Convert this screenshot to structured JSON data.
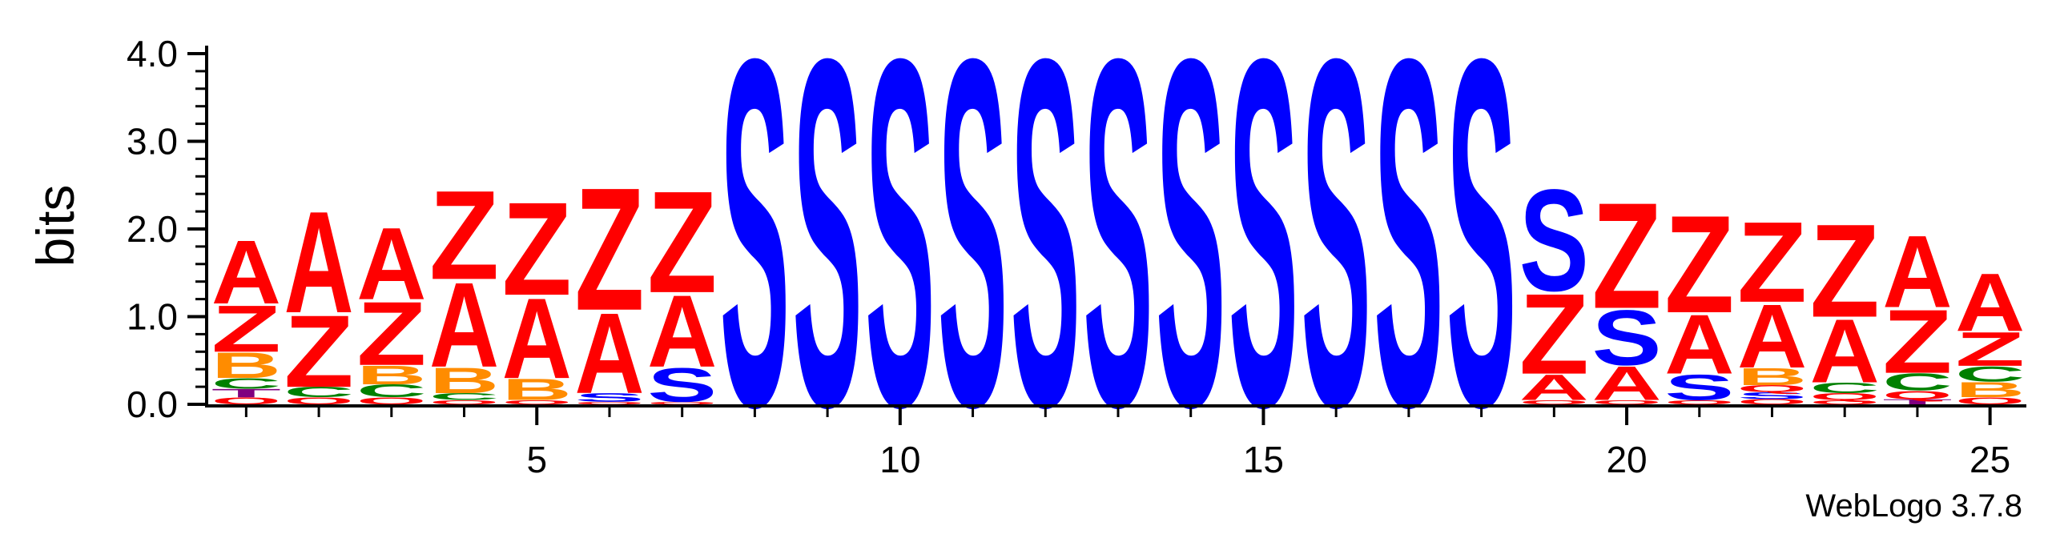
{
  "chart_data": {
    "type": "sequence-logo",
    "ylabel": "bits",
    "ylim": [
      0,
      4.0
    ],
    "y_ticks": [
      0.0,
      1.0,
      2.0,
      3.0,
      4.0
    ],
    "y_tick_labels": [
      "0.0",
      "1.0",
      "2.0",
      "3.0",
      "4.0"
    ],
    "x_ticks": [
      5,
      10,
      15,
      20,
      25
    ],
    "x_tick_labels": [
      "5",
      "10",
      "15",
      "20",
      "25"
    ],
    "x_range": [
      0.5,
      25.5
    ],
    "credit": "WebLogo 3.7.8",
    "colors": {
      "A": "#ff0000",
      "Z": "#ff0000",
      "S": "#0000ff",
      "B": "#ff8c00",
      "C": "#008000",
      "T": "#800080",
      "Q": "#ff0000"
    },
    "positions": [
      {
        "pos": 1,
        "stack": [
          {
            "letter": "Q",
            "bits": 0.08
          },
          {
            "letter": "T",
            "bits": 0.1
          },
          {
            "letter": "C",
            "bits": 0.12
          },
          {
            "letter": "B",
            "bits": 0.3
          },
          {
            "letter": "Z",
            "bits": 0.55
          },
          {
            "letter": "A",
            "bits": 0.75
          }
        ]
      },
      {
        "pos": 2,
        "stack": [
          {
            "letter": "Q",
            "bits": 0.08
          },
          {
            "letter": "C",
            "bits": 0.12
          },
          {
            "letter": "Z",
            "bits": 0.85
          },
          {
            "letter": "A",
            "bits": 1.2
          }
        ]
      },
      {
        "pos": 3,
        "stack": [
          {
            "letter": "Q",
            "bits": 0.08
          },
          {
            "letter": "C",
            "bits": 0.15
          },
          {
            "letter": "B",
            "bits": 0.22
          },
          {
            "letter": "Z",
            "bits": 0.75
          },
          {
            "letter": "A",
            "bits": 0.85
          }
        ]
      },
      {
        "pos": 4,
        "stack": [
          {
            "letter": "Q",
            "bits": 0.05
          },
          {
            "letter": "C",
            "bits": 0.08
          },
          {
            "letter": "B",
            "bits": 0.3
          },
          {
            "letter": "A",
            "bits": 1.0
          },
          {
            "letter": "Z",
            "bits": 1.05
          }
        ]
      },
      {
        "pos": 5,
        "stack": [
          {
            "letter": "Q",
            "bits": 0.05
          },
          {
            "letter": "B",
            "bits": 0.25
          },
          {
            "letter": "A",
            "bits": 0.95
          },
          {
            "letter": "Z",
            "bits": 1.1
          }
        ]
      },
      {
        "pos": 6,
        "stack": [
          {
            "letter": "Q",
            "bits": 0.03
          },
          {
            "letter": "S",
            "bits": 0.1
          },
          {
            "letter": "A",
            "bits": 0.95
          },
          {
            "letter": "Z",
            "bits": 1.45
          }
        ]
      },
      {
        "pos": 7,
        "stack": [
          {
            "letter": "Q",
            "bits": 0.03
          },
          {
            "letter": "S",
            "bits": 0.4
          },
          {
            "letter": "A",
            "bits": 0.85
          },
          {
            "letter": "Z",
            "bits": 1.2
          }
        ]
      },
      {
        "pos": 8,
        "stack": [
          {
            "letter": "S",
            "bits": 4.1
          }
        ]
      },
      {
        "pos": 9,
        "stack": [
          {
            "letter": "S",
            "bits": 4.1
          }
        ]
      },
      {
        "pos": 10,
        "stack": [
          {
            "letter": "S",
            "bits": 4.1
          }
        ]
      },
      {
        "pos": 11,
        "stack": [
          {
            "letter": "S",
            "bits": 4.1
          }
        ]
      },
      {
        "pos": 12,
        "stack": [
          {
            "letter": "S",
            "bits": 4.1
          }
        ]
      },
      {
        "pos": 13,
        "stack": [
          {
            "letter": "S",
            "bits": 4.1
          }
        ]
      },
      {
        "pos": 14,
        "stack": [
          {
            "letter": "S",
            "bits": 4.1
          }
        ]
      },
      {
        "pos": 15,
        "stack": [
          {
            "letter": "S",
            "bits": 4.1
          }
        ]
      },
      {
        "pos": 16,
        "stack": [
          {
            "letter": "S",
            "bits": 4.1
          }
        ]
      },
      {
        "pos": 17,
        "stack": [
          {
            "letter": "S",
            "bits": 4.1
          }
        ]
      },
      {
        "pos": 18,
        "stack": [
          {
            "letter": "S",
            "bits": 4.1
          }
        ]
      },
      {
        "pos": 19,
        "stack": [
          {
            "letter": "Q",
            "bits": 0.05
          },
          {
            "letter": "A",
            "bits": 0.3
          },
          {
            "letter": "Z",
            "bits": 0.95
          },
          {
            "letter": "S",
            "bits": 1.2
          }
        ]
      },
      {
        "pos": 20,
        "stack": [
          {
            "letter": "Q",
            "bits": 0.05
          },
          {
            "letter": "A",
            "bits": 0.4
          },
          {
            "letter": "S",
            "bits": 0.65
          },
          {
            "letter": "Z",
            "bits": 1.25
          }
        ]
      },
      {
        "pos": 21,
        "stack": [
          {
            "letter": "Q",
            "bits": 0.05
          },
          {
            "letter": "S",
            "bits": 0.3
          },
          {
            "letter": "A",
            "bits": 0.7
          },
          {
            "letter": "Z",
            "bits": 1.15
          }
        ]
      },
      {
        "pos": 22,
        "stack": [
          {
            "letter": "Q",
            "bits": 0.06
          },
          {
            "letter": "S",
            "bits": 0.08
          },
          {
            "letter": "Q",
            "bits": 0.08
          },
          {
            "letter": "B",
            "bits": 0.2
          },
          {
            "letter": "A",
            "bits": 0.75
          },
          {
            "letter": "Z",
            "bits": 0.95
          }
        ]
      },
      {
        "pos": 23,
        "stack": [
          {
            "letter": "Q",
            "bits": 0.05
          },
          {
            "letter": "Q",
            "bits": 0.08
          },
          {
            "letter": "C",
            "bits": 0.12
          },
          {
            "letter": "A",
            "bits": 0.75
          },
          {
            "letter": "Z",
            "bits": 1.1
          }
        ]
      },
      {
        "pos": 24,
        "stack": [
          {
            "letter": "T",
            "bits": 0.06
          },
          {
            "letter": "Q",
            "bits": 0.1
          },
          {
            "letter": "C",
            "bits": 0.2
          },
          {
            "letter": "Z",
            "bits": 0.75
          },
          {
            "letter": "A",
            "bits": 0.85
          }
        ]
      },
      {
        "pos": 25,
        "stack": [
          {
            "letter": "Q",
            "bits": 0.08
          },
          {
            "letter": "B",
            "bits": 0.18
          },
          {
            "letter": "C",
            "bits": 0.18
          },
          {
            "letter": "Z",
            "bits": 0.4
          },
          {
            "letter": "A",
            "bits": 0.68
          }
        ]
      }
    ]
  }
}
